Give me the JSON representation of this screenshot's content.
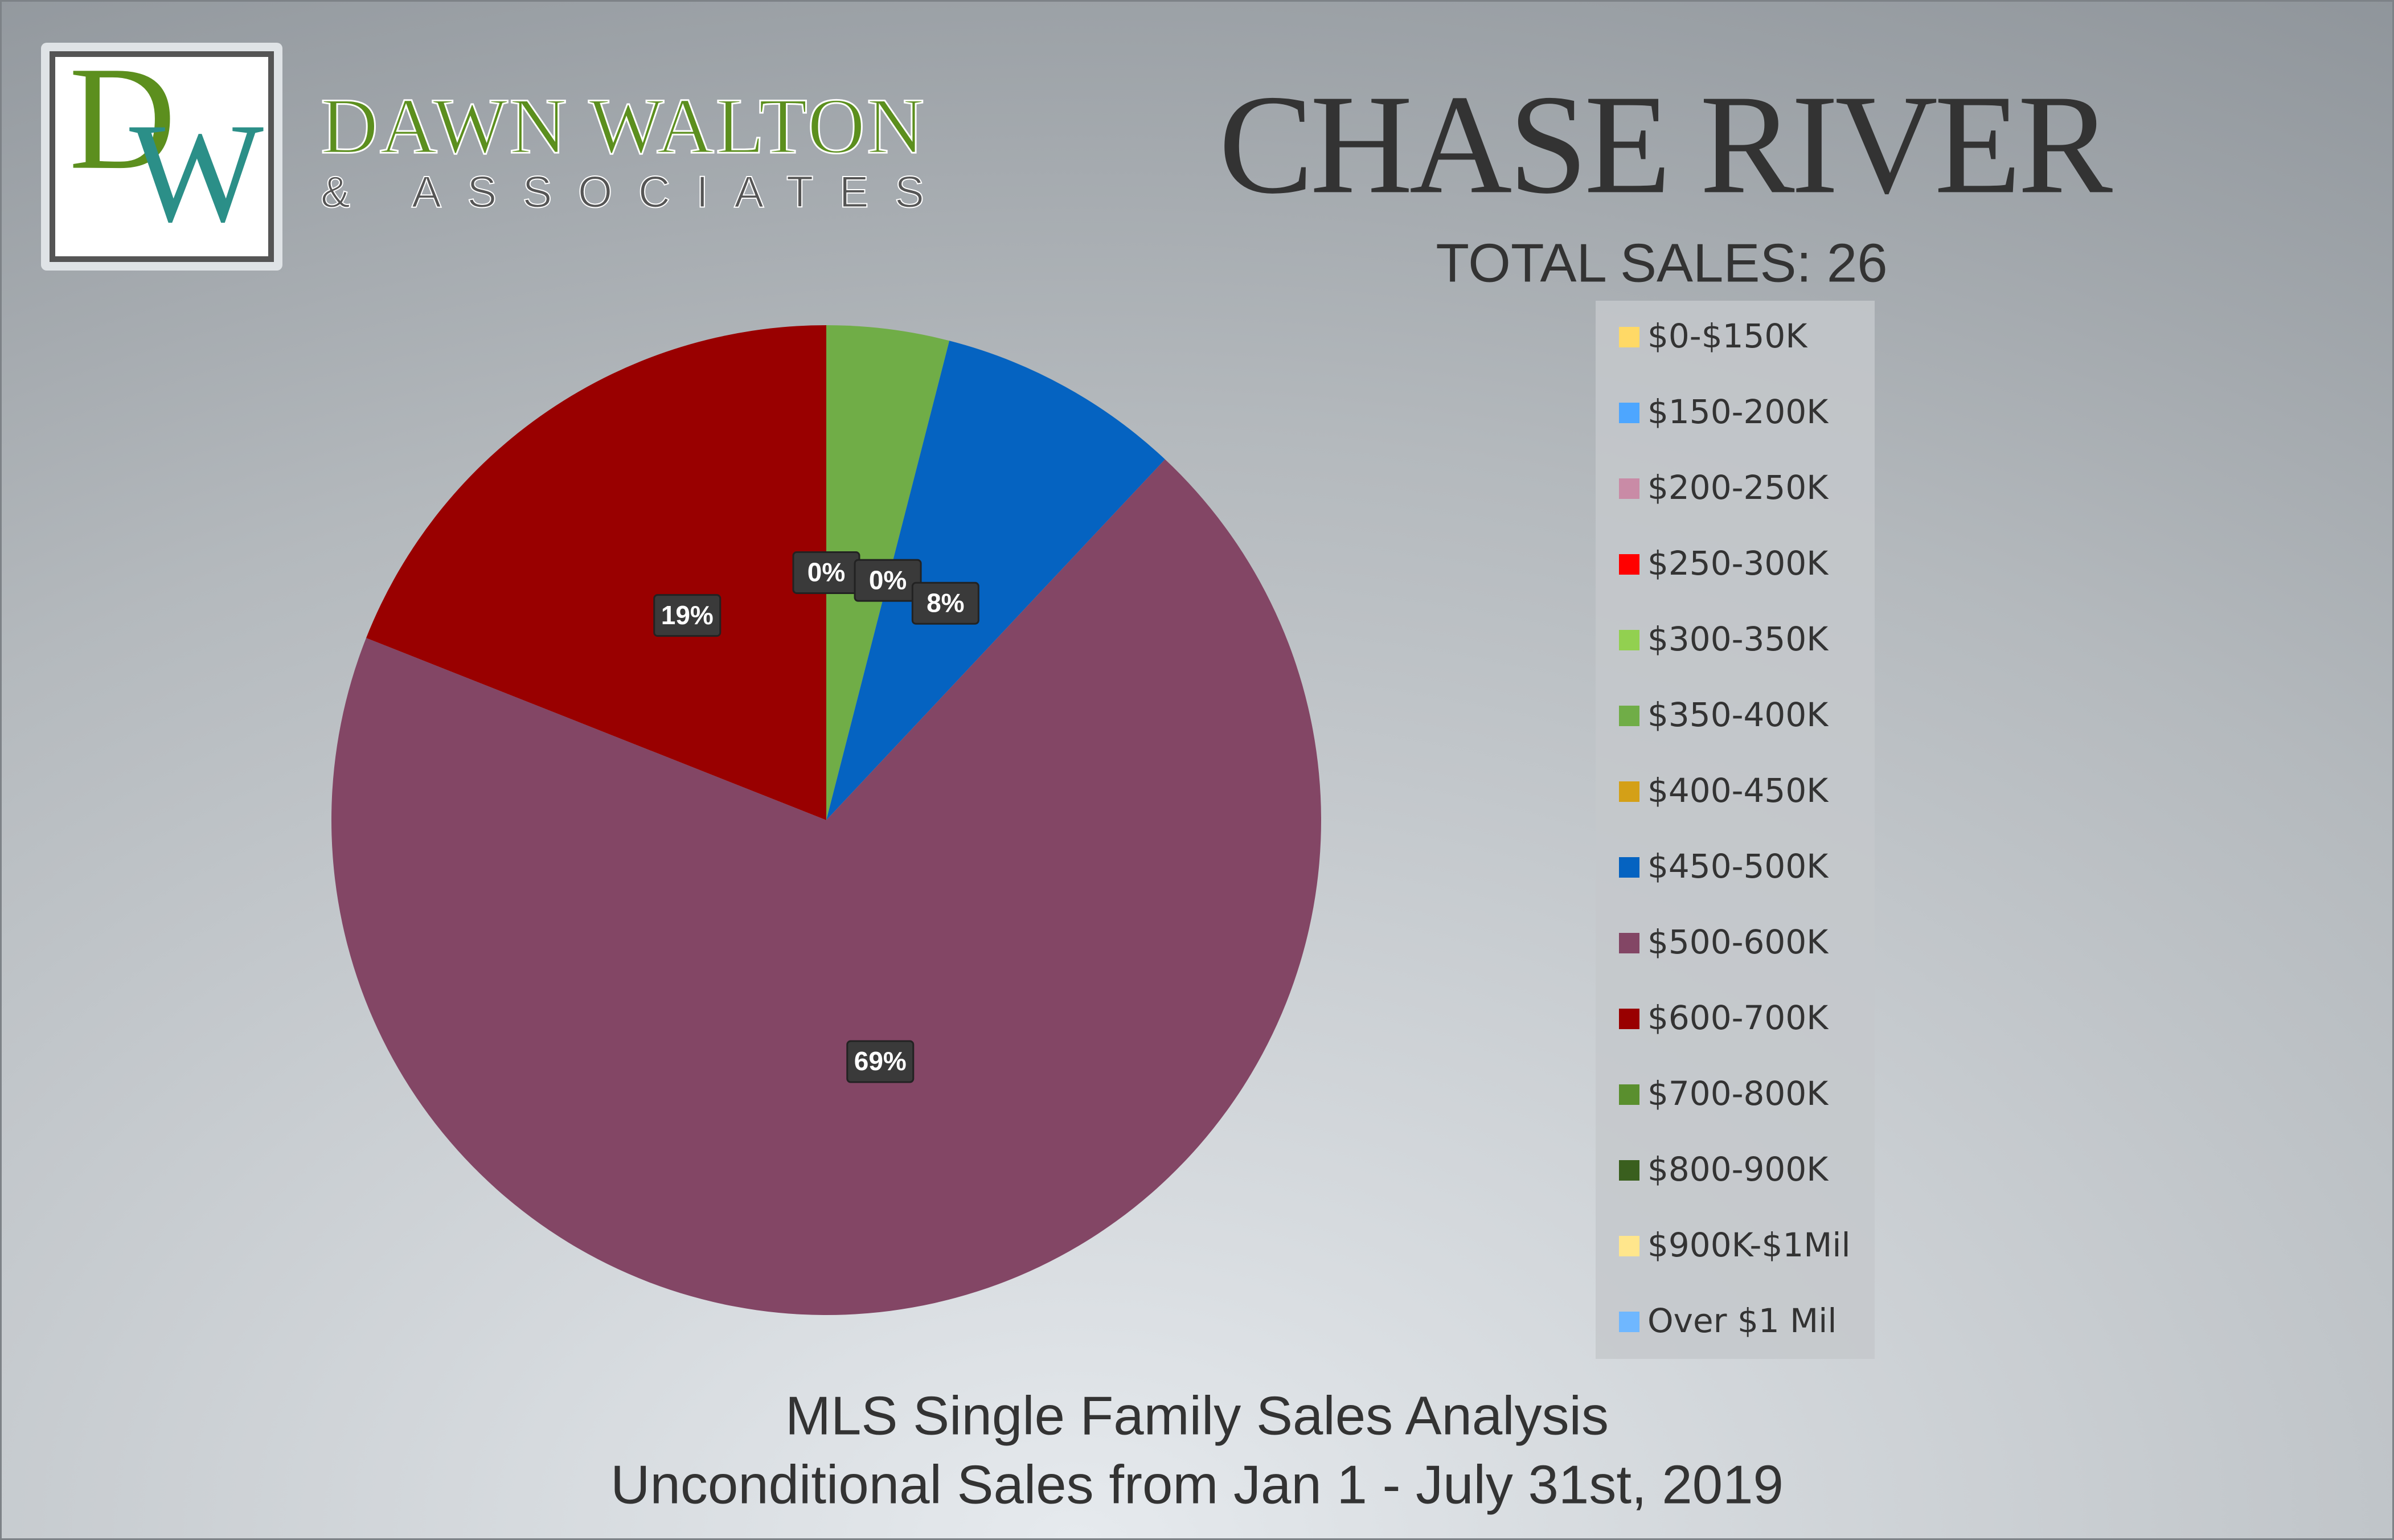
{
  "logo": {
    "initials": [
      "D",
      "W"
    ],
    "name": "DAWN WALTON",
    "tagline": "& ASSOCIATES"
  },
  "chart_data": {
    "type": "pie",
    "title": "CHASE RIVER",
    "subtitle": "TOTAL SALES: 26",
    "footer": [
      "MLS Single Family Sales Analysis",
      "Unconditional Sales from Jan 1 - July 31st, 2019"
    ],
    "categories": [
      "$0-$150K",
      "$150-200K",
      "$200-250K",
      "$250-300K",
      "$300-350K",
      "$350-400K",
      "$400-450K",
      "$450-500K",
      "$500-600K",
      "$600-700K",
      "$700-800K",
      "$800-900K",
      "$900K-$1Mil",
      "Over $1 Mil"
    ],
    "values": [
      0,
      0,
      0,
      0,
      0,
      4,
      0,
      8,
      69,
      19,
      0,
      0,
      0,
      0
    ],
    "value_labels": [
      null,
      null,
      null,
      null,
      "0%",
      null,
      "0%",
      "8%",
      "69%",
      "19%",
      null,
      null,
      null,
      null
    ],
    "colors": [
      "#ffd966",
      "#4da6ff",
      "#c98ba6",
      "#ff0000",
      "#92d050",
      "#70ad47",
      "#d4a017",
      "#0563c1",
      "#834665",
      "#990000",
      "#5a8f2e",
      "#3a5f1e",
      "#ffe68c",
      "#6fb7ff"
    ],
    "legend": "right"
  }
}
